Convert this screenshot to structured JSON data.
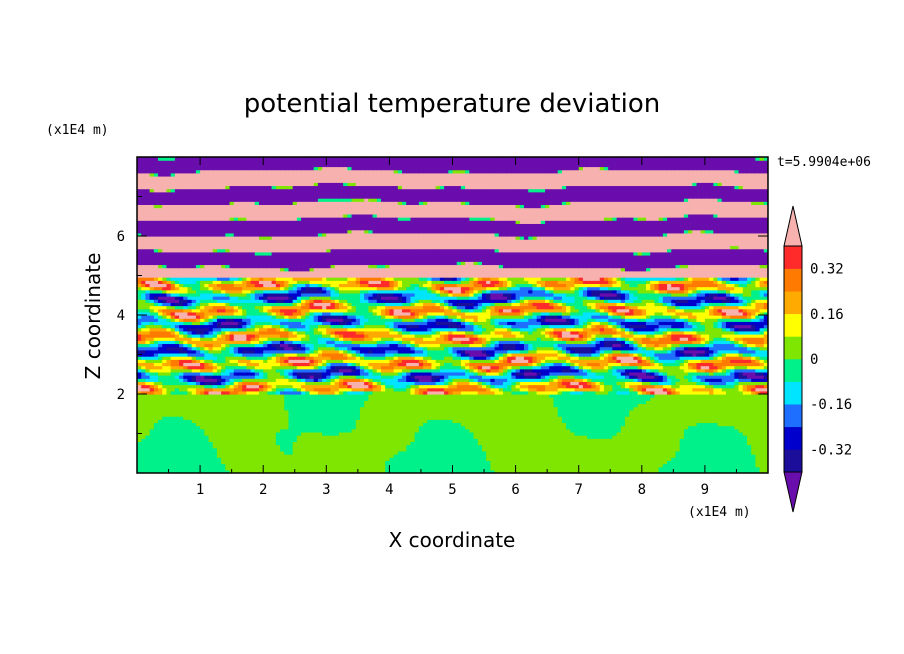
{
  "chart_data": {
    "type": "heatmap",
    "title": "potential temperature deviation",
    "xlabel": "X coordinate",
    "ylabel": "Z coordinate",
    "x_unit": "(x1E4 m)",
    "y_unit": "(x1E4 m)",
    "time_label": "t=5.9904e+06",
    "xlim": [
      0,
      10
    ],
    "ylim": [
      0,
      8
    ],
    "x_ticks": [
      "1",
      "2",
      "3",
      "4",
      "5",
      "6",
      "7",
      "8",
      "9"
    ],
    "y_ticks": [
      "2",
      "4",
      "6"
    ],
    "colorbar": {
      "tick_labels": [
        "0.32",
        "0.16",
        "0",
        "-0.16",
        "-0.32"
      ],
      "tick_values": [
        0.32,
        0.16,
        0,
        -0.16,
        -0.32
      ],
      "levels": [
        -0.4,
        -0.32,
        -0.24,
        -0.16,
        -0.08,
        0,
        0.08,
        0.16,
        0.24,
        0.32,
        0.4
      ],
      "colors": [
        "#6a0dad",
        "#1a0e9a",
        "#0000cd",
        "#1e6fff",
        "#00e5ff",
        "#00f08a",
        "#7ee600",
        "#ffff00",
        "#ffaa00",
        "#ff7a00",
        "#ff2a2a",
        "#f7b1ae"
      ],
      "extend": "both"
    },
    "regions": [
      {
        "z_range": [
          0,
          2
        ],
        "description_value": 0.04,
        "pattern": "convective cells of values near 0 (green / light-green)"
      },
      {
        "z_range": [
          2,
          5
        ],
        "pattern": "mixed band with full range of values"
      },
      {
        "z_range": [
          5,
          8
        ],
        "pattern": "alternating layers of high (pink, > 0.4) and low (purple, < -0.4)"
      }
    ]
  }
}
